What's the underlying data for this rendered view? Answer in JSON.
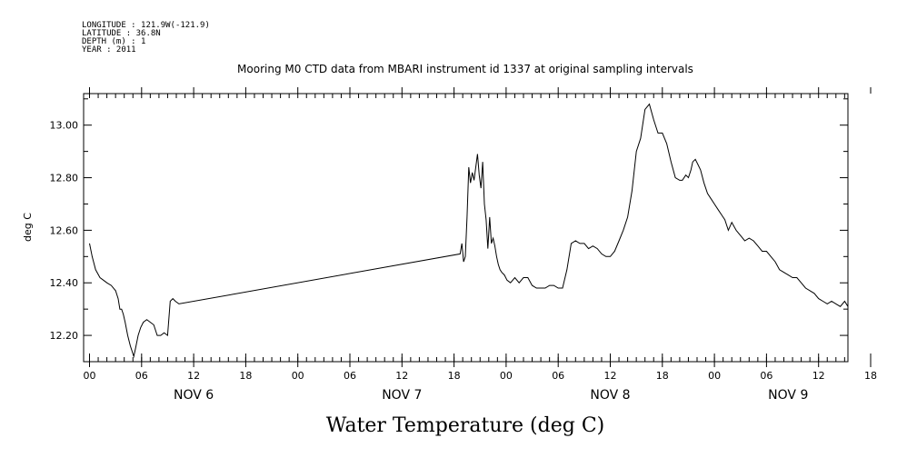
{
  "metadata": {
    "longitude": "LONGITUDE : 121.9W(-121.9)",
    "latitude": "LATITUDE : 36.8N",
    "depth": "DEPTH (m) : 1",
    "year": "YEAR : 2011"
  },
  "chart_data": {
    "type": "line",
    "title": "Mooring M0 CTD data from MBARI instrument id 1337 at original sampling intervals",
    "bottom_title": "Water Temperature (deg C)",
    "ylabel": "deg C",
    "xlim": [
      0,
      94
    ],
    "ylim": [
      12.1,
      13.12
    ],
    "y_ticks": [
      12.2,
      12.4,
      12.6,
      12.8,
      13.0
    ],
    "y_tick_labels": [
      "12.20",
      "12.40",
      "12.60",
      "12.80",
      "13.00"
    ],
    "x_ticks": [
      0,
      6,
      12,
      18,
      24,
      30,
      36,
      42,
      48,
      54,
      60,
      66,
      72,
      78,
      84,
      90
    ],
    "x_tick_labels": [
      "00",
      "06",
      "12",
      "18",
      "00",
      "06",
      "12",
      "18",
      "00",
      "06",
      "12",
      "18",
      "00",
      "06",
      "12",
      "18"
    ],
    "x_date_labels": [
      {
        "x": 12,
        "label": "NOV  6"
      },
      {
        "x": 36,
        "label": "NOV  7"
      },
      {
        "x": 60,
        "label": "NOV  8"
      },
      {
        "x": 80.5,
        "label": "NOV  9"
      }
    ],
    "series": [
      {
        "x": [
          0,
          0.3,
          0.7,
          1.2,
          1.6,
          2.0,
          2.5,
          3.0,
          3.3,
          3.5,
          3.7,
          3.9,
          4.1,
          4.4,
          4.7,
          4.9,
          5.1,
          5.3,
          5.6,
          5.9,
          6.2,
          6.6,
          7.0,
          7.4,
          7.8,
          8.2,
          8.6,
          9.0,
          9.3,
          9.6,
          9.9,
          10.3,
          42.7,
          42.9,
          43.1,
          43.3,
          43.5,
          43.7,
          43.9,
          44.1,
          44.3,
          44.5,
          44.7,
          44.9,
          45.1,
          45.3,
          45.5,
          45.7,
          45.9,
          46.1,
          46.3,
          46.5,
          46.7,
          46.9,
          47.1,
          47.3,
          47.5,
          47.8,
          48.1,
          48.5,
          49,
          49.5,
          50,
          50.5,
          51,
          51.5,
          52,
          52.5,
          53,
          53.5,
          54,
          54.5,
          55,
          55.5,
          56,
          56.5,
          57,
          57.5,
          58,
          58.5,
          59,
          59.5,
          60,
          60.5,
          61,
          61.5,
          62,
          62.5,
          63,
          63.5,
          64,
          64.5,
          65,
          65.5,
          66,
          66.5,
          67,
          67.5,
          68,
          68.3,
          68.7,
          69,
          69.3,
          69.5,
          69.8,
          70.1,
          70.4,
          70.8,
          71.2,
          71.6,
          72,
          72.4,
          72.8,
          73.2,
          73.6,
          74,
          74.5,
          75,
          75.5,
          76,
          76.5,
          77,
          77.5,
          78,
          78.5,
          79,
          79.5,
          80,
          80.5,
          81,
          81.5,
          82,
          82.5,
          83,
          83.5,
          84,
          84.5,
          85,
          85.5,
          86,
          86.5,
          87,
          87.5,
          88,
          88.3
        ],
        "y": [
          12.55,
          12.5,
          12.45,
          12.42,
          12.41,
          12.4,
          12.39,
          12.37,
          12.34,
          12.3,
          12.3,
          12.28,
          12.25,
          12.2,
          12.16,
          12.14,
          12.12,
          12.15,
          12.2,
          12.23,
          12.25,
          12.26,
          12.25,
          12.24,
          12.2,
          12.2,
          12.21,
          12.2,
          12.33,
          12.34,
          12.33,
          12.32,
          12.51,
          12.55,
          12.48,
          12.5,
          12.65,
          12.84,
          12.78,
          12.82,
          12.79,
          12.84,
          12.89,
          12.81,
          12.76,
          12.86,
          12.7,
          12.64,
          12.53,
          12.65,
          12.55,
          12.57,
          12.54,
          12.5,
          12.47,
          12.45,
          12.44,
          12.43,
          12.41,
          12.4,
          12.42,
          12.4,
          12.42,
          12.42,
          12.39,
          12.38,
          12.38,
          12.38,
          12.39,
          12.39,
          12.38,
          12.38,
          12.45,
          12.55,
          12.56,
          12.55,
          12.55,
          12.53,
          12.54,
          12.53,
          12.51,
          12.5,
          12.5,
          12.52,
          12.56,
          12.6,
          12.65,
          12.75,
          12.9,
          12.95,
          13.06,
          13.08,
          13.02,
          12.97,
          12.97,
          12.93,
          12.86,
          12.8,
          12.79,
          12.79,
          12.81,
          12.8,
          12.83,
          12.86,
          12.87,
          12.85,
          12.83,
          12.78,
          12.74,
          12.72,
          12.7,
          12.68,
          12.66,
          12.64,
          12.6,
          12.63,
          12.6,
          12.58,
          12.56,
          12.57,
          12.56,
          12.54,
          12.52,
          12.52,
          12.5,
          12.48,
          12.45,
          12.44,
          12.43,
          12.42,
          12.42,
          12.4,
          12.38,
          12.37,
          12.36,
          12.34,
          12.33,
          12.32,
          12.33,
          12.32,
          12.31,
          12.33,
          12.31,
          12.3,
          12.31
        ]
      }
    ]
  }
}
